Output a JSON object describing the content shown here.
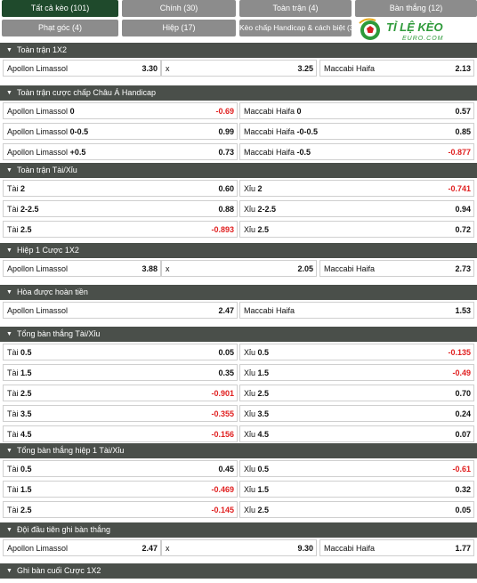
{
  "tabs": [
    {
      "label": "Tất cả kèo (101)",
      "active": true
    },
    {
      "label": "Chính (30)"
    },
    {
      "label": "Toàn trận (4)"
    },
    {
      "label": "Bàn thắng (12)"
    },
    {
      "label": "Phạt góc (4)"
    },
    {
      "label": "Hiệp (17)"
    },
    {
      "label": "Kèo chấp Handicap & cách biệt (3)"
    }
  ],
  "logo": {
    "main": "TỈ LỆ KÈO",
    "sub": "EURO.COM",
    "colors": {
      "green": "#2e9a3a",
      "red": "#d62020",
      "gold": "#e6a817"
    }
  },
  "sections": [
    {
      "title": "Toàn trận 1X2",
      "layout": "three",
      "rows": [
        [
          {
            "label": "Apollon Limassol",
            "odd": "3.30"
          },
          {
            "label": "x",
            "odd": "3.25"
          },
          {
            "label": "Maccabi Haifa",
            "odd": "2.13"
          }
        ]
      ]
    },
    {
      "title": "Toàn trận cược chấp Châu Á Handicap",
      "layout": "two",
      "rows": [
        [
          {
            "label": "Apollon Limassol",
            "line": "0",
            "odd": "-0.69"
          },
          {
            "label": "Maccabi Haifa",
            "line": "0",
            "odd": "0.57"
          }
        ],
        [
          {
            "label": "Apollon Limassol",
            "line": "0-0.5",
            "odd": "0.99"
          },
          {
            "label": "Maccabi Haifa",
            "line": "-0-0.5",
            "odd": "0.85"
          }
        ],
        [
          {
            "label": "Apollon Limassol",
            "line": "+0.5",
            "odd": "0.73"
          },
          {
            "label": "Maccabi Haifa",
            "line": "-0.5",
            "odd": "-0.877"
          }
        ]
      ]
    },
    {
      "title": "Toàn trận Tài/Xỉu",
      "layout": "two",
      "rows": [
        [
          {
            "label": "Tài",
            "line": "2",
            "odd": "0.60"
          },
          {
            "label": "Xỉu",
            "line": "2",
            "odd": "-0.741"
          }
        ],
        [
          {
            "label": "Tài",
            "line": "2-2.5",
            "odd": "0.88"
          },
          {
            "label": "Xỉu",
            "line": "2-2.5",
            "odd": "0.94"
          }
        ],
        [
          {
            "label": "Tài",
            "line": "2.5",
            "odd": "-0.893"
          },
          {
            "label": "Xỉu",
            "line": "2.5",
            "odd": "0.72"
          }
        ]
      ]
    },
    {
      "title": "Hiệp 1 Cược 1X2",
      "layout": "three",
      "rows": [
        [
          {
            "label": "Apollon Limassol",
            "odd": "3.88"
          },
          {
            "label": "x",
            "odd": "2.05"
          },
          {
            "label": "Maccabi Haifa",
            "odd": "2.73"
          }
        ]
      ]
    },
    {
      "title": "Hòa được hoàn tiền",
      "layout": "two",
      "rows": [
        [
          {
            "label": "Apollon Limassol",
            "odd": "2.47"
          },
          {
            "label": "Maccabi Haifa",
            "odd": "1.53"
          }
        ]
      ]
    },
    {
      "title": "Tổng bàn thắng Tài/Xỉu",
      "layout": "two",
      "rows": [
        [
          {
            "label": "Tài",
            "line": "0.5",
            "odd": "0.05"
          },
          {
            "label": "Xỉu",
            "line": "0.5",
            "odd": "-0.135"
          }
        ],
        [
          {
            "label": "Tài",
            "line": "1.5",
            "odd": "0.35"
          },
          {
            "label": "Xỉu",
            "line": "1.5",
            "odd": "-0.49"
          }
        ],
        [
          {
            "label": "Tài",
            "line": "2.5",
            "odd": "-0.901"
          },
          {
            "label": "Xỉu",
            "line": "2.5",
            "odd": "0.70"
          }
        ],
        [
          {
            "label": "Tài",
            "line": "3.5",
            "odd": "-0.355"
          },
          {
            "label": "Xỉu",
            "line": "3.5",
            "odd": "0.24"
          }
        ],
        [
          {
            "label": "Tài",
            "line": "4.5",
            "odd": "-0.156"
          },
          {
            "label": "Xỉu",
            "line": "4.5",
            "odd": "0.07"
          }
        ]
      ]
    },
    {
      "title": "Tổng bàn thắng hiệp 1 Tài/Xỉu",
      "layout": "two",
      "rows": [
        [
          {
            "label": "Tài",
            "line": "0.5",
            "odd": "0.45"
          },
          {
            "label": "Xỉu",
            "line": "0.5",
            "odd": "-0.61"
          }
        ],
        [
          {
            "label": "Tài",
            "line": "1.5",
            "odd": "-0.469"
          },
          {
            "label": "Xỉu",
            "line": "1.5",
            "odd": "0.32"
          }
        ],
        [
          {
            "label": "Tài",
            "line": "2.5",
            "odd": "-0.145"
          },
          {
            "label": "Xỉu",
            "line": "2.5",
            "odd": "0.05"
          }
        ]
      ]
    },
    {
      "title": "Đội đầu tiên ghi bàn thắng",
      "layout": "three",
      "rows": [
        [
          {
            "label": "Apollon Limassol",
            "odd": "2.47"
          },
          {
            "label": "x",
            "odd": "9.30"
          },
          {
            "label": "Maccabi Haifa",
            "odd": "1.77"
          }
        ]
      ]
    },
    {
      "title": "Ghi bàn cuối Cược 1X2",
      "layout": "three",
      "rows": []
    }
  ],
  "colors": {
    "header_bg": "#4a4f4a",
    "active_tab": "#1f4a2c",
    "tab": "#8c8c8c",
    "negative_odd": "#e02020"
  }
}
